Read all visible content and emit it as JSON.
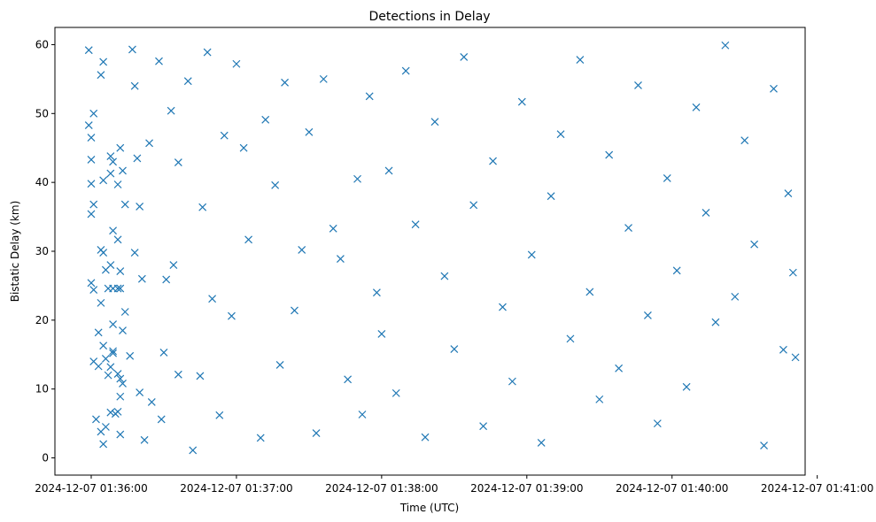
{
  "chart_data": {
    "type": "scatter",
    "title": "Detections in Delay",
    "xlabel": "Time (UTC)",
    "ylabel": "Bistatic Delay (km)",
    "x_type": "datetime",
    "xlim": [
      "2024-12-07 01:35:45",
      "2024-12-07 01:40:55"
    ],
    "ylim": [
      -2.5,
      62.5
    ],
    "x_ticks": [
      "2024-12-07 01:36:00",
      "2024-12-07 01:37:00",
      "2024-12-07 01:38:00",
      "2024-12-07 01:39:00",
      "2024-12-07 01:40:00",
      "2024-12-07 01:41:00"
    ],
    "y_ticks": [
      0,
      10,
      20,
      30,
      40,
      50,
      60
    ],
    "marker": "x",
    "color": "#1f77b4",
    "grid": false,
    "series": [
      {
        "x": [
          "2024-12-07 01:35:59",
          "2024-12-07 01:35:59",
          "2024-12-07 01:36:00",
          "2024-12-07 01:36:01",
          "2024-12-07 01:36:04",
          "2024-12-07 01:36:05",
          "2024-12-07 01:36:00",
          "2024-12-07 01:36:00",
          "2024-12-07 01:36:00",
          "2024-12-07 01:36:01",
          "2024-12-07 01:36:00",
          "2024-12-07 01:36:01",
          "2024-12-07 01:36:03",
          "2024-12-07 01:36:04",
          "2024-12-07 01:36:07",
          "2024-12-07 01:36:08",
          "2024-12-07 01:36:09",
          "2024-12-07 01:36:08",
          "2024-12-07 01:36:13",
          "2024-12-07 01:36:11",
          "2024-12-07 01:36:11",
          "2024-12-07 01:36:12",
          "2024-12-07 01:36:05",
          "2024-12-07 01:36:06",
          "2024-12-07 01:36:08",
          "2024-12-07 01:36:09",
          "2024-12-07 01:36:02",
          "2024-12-07 01:36:05",
          "2024-12-07 01:36:10",
          "2024-12-07 01:36:11",
          "2024-12-07 01:36:13",
          "2024-12-07 01:36:07",
          "2024-12-07 01:36:09",
          "2024-12-07 01:36:11",
          "2024-12-07 01:36:14",
          "2024-12-07 01:36:04",
          "2024-12-07 01:36:05",
          "2024-12-07 01:36:06",
          "2024-12-07 01:36:09",
          "2024-12-07 01:36:12",
          "2024-12-07 01:36:13",
          "2024-12-07 01:36:12",
          "2024-12-07 01:36:12",
          "2024-12-07 01:36:01",
          "2024-12-07 01:36:03",
          "2024-12-07 01:36:09",
          "2024-12-07 01:36:11",
          "2024-12-07 01:36:04",
          "2024-12-07 01:36:06",
          "2024-12-07 01:36:08",
          "2024-12-07 01:36:12",
          "2024-12-07 01:36:14",
          "2024-12-07 01:36:05",
          "2024-12-07 01:36:08",
          "2024-12-07 01:36:09",
          "2024-12-07 01:36:12",
          "2024-12-07 01:36:16",
          "2024-12-07 01:36:18",
          "2024-12-07 01:36:20",
          "2024-12-07 01:36:22",
          "2024-12-07 01:36:18",
          "2024-12-07 01:36:17",
          "2024-12-07 01:36:20",
          "2024-12-07 01:36:19",
          "2024-12-07 01:36:21",
          "2024-12-07 01:36:25",
          "2024-12-07 01:36:24",
          "2024-12-07 01:36:28",
          "2024-12-07 01:36:30",
          "2024-12-07 01:36:29",
          "2024-12-07 01:36:33",
          "2024-12-07 01:36:31",
          "2024-12-07 01:36:34",
          "2024-12-07 01:36:36",
          "2024-12-07 01:36:36",
          "2024-12-07 01:36:40",
          "2024-12-07 01:36:42",
          "2024-12-07 01:36:45",
          "2024-12-07 01:36:48",
          "2024-12-07 01:36:46",
          "2024-12-07 01:36:50",
          "2024-12-07 01:36:53",
          "2024-12-07 01:36:55",
          "2024-12-07 01:36:58",
          "2024-12-07 01:37:00",
          "2024-12-07 01:37:03",
          "2024-12-07 01:37:05",
          "2024-12-07 01:37:10",
          "2024-12-07 01:37:12",
          "2024-12-07 01:37:16",
          "2024-12-07 01:37:18",
          "2024-12-07 01:37:20",
          "2024-12-07 01:37:24",
          "2024-12-07 01:37:27",
          "2024-12-07 01:37:30",
          "2024-12-07 01:37:33",
          "2024-12-07 01:37:36",
          "2024-12-07 01:37:40",
          "2024-12-07 01:37:43",
          "2024-12-07 01:37:46",
          "2024-12-07 01:37:50",
          "2024-12-07 01:37:52",
          "2024-12-07 01:37:55",
          "2024-12-07 01:37:58",
          "2024-12-07 01:38:00",
          "2024-12-07 01:38:03",
          "2024-12-07 01:38:06",
          "2024-12-07 01:38:10",
          "2024-12-07 01:38:14",
          "2024-12-07 01:38:18",
          "2024-12-07 01:38:22",
          "2024-12-07 01:38:26",
          "2024-12-07 01:38:30",
          "2024-12-07 01:38:34",
          "2024-12-07 01:38:38",
          "2024-12-07 01:38:42",
          "2024-12-07 01:38:46",
          "2024-12-07 01:38:50",
          "2024-12-07 01:38:54",
          "2024-12-07 01:38:58",
          "2024-12-07 01:39:02",
          "2024-12-07 01:39:06",
          "2024-12-07 01:39:10",
          "2024-12-07 01:39:14",
          "2024-12-07 01:39:18",
          "2024-12-07 01:39:22",
          "2024-12-07 01:39:26",
          "2024-12-07 01:39:30",
          "2024-12-07 01:39:34",
          "2024-12-07 01:39:38",
          "2024-12-07 01:39:42",
          "2024-12-07 01:39:46",
          "2024-12-07 01:39:50",
          "2024-12-07 01:39:54",
          "2024-12-07 01:39:58",
          "2024-12-07 01:40:02",
          "2024-12-07 01:40:06",
          "2024-12-07 01:40:10",
          "2024-12-07 01:40:14",
          "2024-12-07 01:40:18",
          "2024-12-07 01:40:22",
          "2024-12-07 01:40:26",
          "2024-12-07 01:40:30",
          "2024-12-07 01:40:34",
          "2024-12-07 01:40:38",
          "2024-12-07 01:40:42",
          "2024-12-07 01:40:46",
          "2024-12-07 01:40:48",
          "2024-12-07 01:40:50",
          "2024-12-07 01:40:51"
        ],
        "y": [
          59.2,
          48.3,
          46.5,
          50.0,
          55.6,
          57.5,
          43.3,
          39.8,
          35.4,
          36.8,
          25.4,
          24.4,
          18.2,
          22.5,
          24.6,
          28.0,
          33.0,
          43.8,
          41.7,
          39.7,
          31.7,
          27.1,
          16.3,
          14.4,
          13.2,
          15.2,
          5.6,
          2.0,
          6.4,
          12.2,
          10.8,
          12.0,
          19.4,
          24.6,
          21.2,
          30.2,
          29.8,
          27.3,
          24.6,
          24.6,
          18.5,
          8.9,
          3.4,
          14.0,
          13.3,
          15.5,
          6.7,
          3.8,
          4.5,
          6.6,
          45.0,
          36.8,
          40.3,
          41.3,
          43.0,
          11.5,
          14.8,
          29.8,
          9.5,
          2.6,
          54.0,
          59.3,
          36.5,
          43.5,
          26.0,
          8.1,
          45.7,
          57.6,
          15.3,
          5.6,
          50.4,
          25.9,
          28.0,
          42.9,
          12.1,
          54.7,
          1.1,
          11.9,
          58.9,
          36.4,
          23.1,
          6.2,
          46.8,
          20.6,
          57.2,
          45.0,
          31.7,
          2.9,
          49.1,
          39.6,
          13.5,
          54.5,
          21.4,
          30.2,
          47.3,
          3.6,
          55.0,
          33.3,
          28.9,
          11.4,
          40.5,
          6.3,
          52.5,
          24.0,
          18.0,
          41.7,
          9.4,
          56.2,
          33.9,
          3.0,
          48.8,
          26.4,
          15.8,
          58.2,
          36.7,
          4.6,
          43.1,
          21.9,
          11.1,
          51.7,
          29.5,
          2.2,
          38.0,
          47.0,
          17.3,
          57.8,
          24.1,
          8.5,
          44.0,
          13.0,
          33.4,
          54.1,
          20.7,
          5.0,
          40.6,
          27.2,
          10.3,
          50.9,
          35.6,
          19.7,
          59.9,
          23.4,
          46.1,
          31.0,
          1.8,
          53.6,
          15.7,
          38.4,
          26.9,
          14.6
        ]
      }
    ]
  }
}
